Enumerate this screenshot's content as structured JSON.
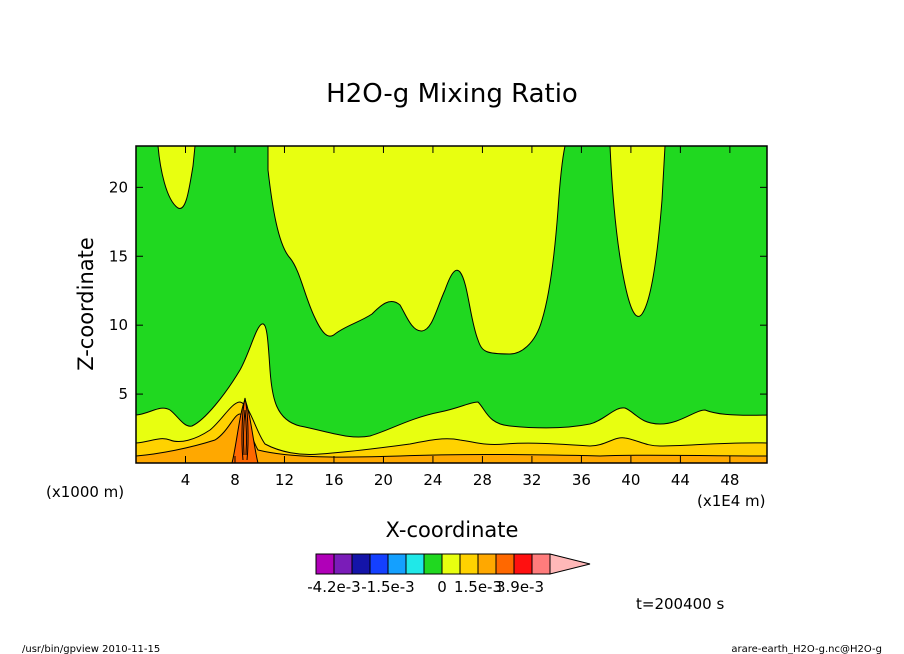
{
  "chart_data": {
    "type": "contour",
    "title": "H2O-g Mixing Ratio",
    "xlabel": "X-coordinate",
    "ylabel": "Z-coordinate",
    "x_scale_note": "(x1E4 m)",
    "z_scale_note": "(x1000 m)",
    "xlim": [
      0,
      51
    ],
    "ylim": [
      0,
      23
    ],
    "x_ticks": [
      "4",
      "8",
      "12",
      "16",
      "20",
      "24",
      "28",
      "32",
      "36",
      "40",
      "44",
      "48"
    ],
    "y_ticks": [
      "5",
      "10",
      "15",
      "20"
    ],
    "color_levels": [
      {
        "color": "#b000b8"
      },
      {
        "color": "#7a1cb8"
      },
      {
        "color": "#1414a8"
      },
      {
        "color": "#1440ff"
      },
      {
        "color": "#14a0ff"
      },
      {
        "color": "#20e8e8"
      },
      {
        "color": "#20d820"
      },
      {
        "color": "#e8ff10"
      },
      {
        "color": "#ffd200"
      },
      {
        "color": "#ffa800"
      },
      {
        "color": "#ff6800"
      },
      {
        "color": "#ff1010"
      },
      {
        "color": "#ff7c7c"
      },
      {
        "color": "#ffb8b8"
      }
    ],
    "colorbar_labels": [
      "-4.2e-3",
      "-1.5e-3",
      "0",
      "1.5e-3",
      "3.9e-3"
    ],
    "time_label": "t=200400 s"
  },
  "footer": {
    "left": "/usr/bin/gpview   2010-11-15",
    "right": "arare-earth_H2O-g.nc@H2O-g"
  }
}
